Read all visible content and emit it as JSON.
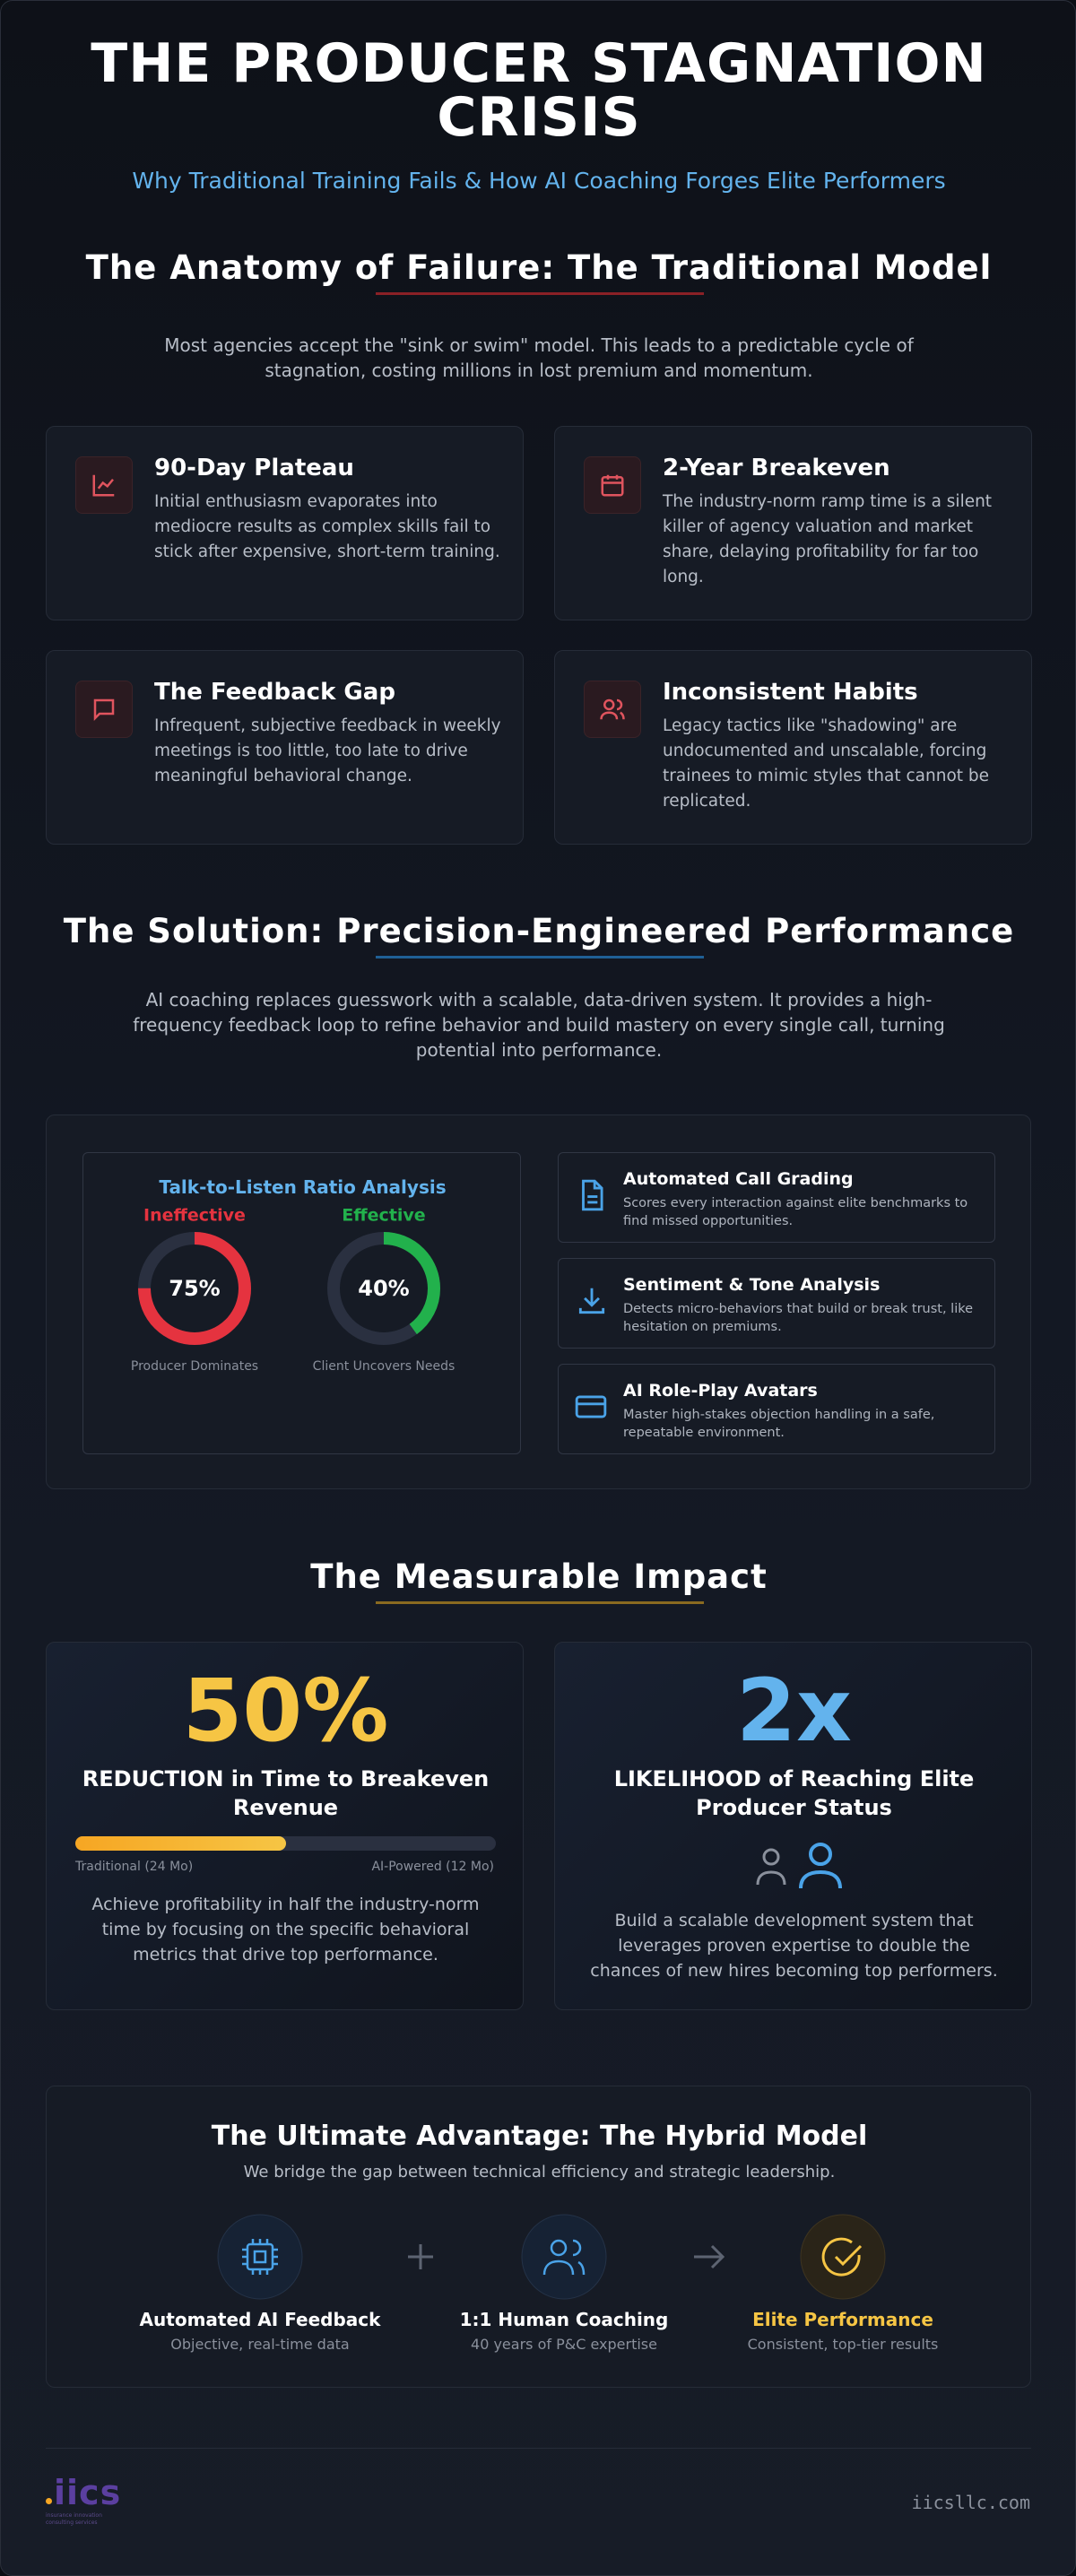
{
  "header": {
    "title": "THE PRODUCER STAGNATION CRISIS",
    "subtitle": "Why Traditional Training Fails & How AI Coaching Forges Elite Performers"
  },
  "failure": {
    "heading": "The Anatomy of Failure: The Traditional Model",
    "intro": "Most agencies accept the \"sink or swim\" model. This leads to a predictable cycle of stagnation, costing millions in lost premium and momentum.",
    "cards": [
      {
        "title": "90-Day Plateau",
        "body": "Initial enthusiasm evaporates into mediocre results as complex skills fail to stick after expensive, short-term training."
      },
      {
        "title": "2-Year Breakeven",
        "body": "The industry-norm ramp time is a silent killer of agency valuation and market share, delaying profitability for far too long."
      },
      {
        "title": "The Feedback Gap",
        "body": "Infrequent, subjective feedback in weekly meetings is too little, too late to drive meaningful behavioral change."
      },
      {
        "title": "Inconsistent Habits",
        "body": "Legacy tactics like \"shadowing\" are undocumented and unscalable, forcing trainees to mimic styles that cannot be replicated."
      }
    ]
  },
  "solution": {
    "heading": "The Solution: Precision-Engineered Performance",
    "intro": "AI coaching replaces guesswork with a scalable, data-driven system. It provides a high-frequency feedback loop to refine behavior and build mastery on every single call, turning potential into performance.",
    "analysis": {
      "title": "Talk-to-Listen Ratio Analysis",
      "gauges": [
        {
          "label": "Ineffective",
          "value": {
            "value": 75,
            "label": "75%"
          },
          "caption": "Producer Dominates",
          "color": "#e5333f"
        },
        {
          "label": "Effective",
          "value": {
            "value": 40,
            "label": "40%"
          },
          "caption": "Client Uncovers Needs",
          "color": "#22b14c"
        }
      ]
    },
    "features": [
      {
        "title": "Automated Call Grading",
        "body": "Scores every interaction against elite benchmarks to find missed opportunities."
      },
      {
        "title": "Sentiment & Tone Analysis",
        "body": "Detects micro-behaviors that build or break trust, like hesitation on premiums."
      },
      {
        "title": "AI Role-Play Avatars",
        "body": "Master high-stakes objection handling in a safe, repeatable environment."
      }
    ]
  },
  "impact": {
    "heading": "The Measurable Impact",
    "cards": [
      {
        "stat": {
          "value": 50,
          "label": "50%"
        },
        "title": "REDUCTION in Time to Breakeven Revenue",
        "bar_labels": [
          "Traditional (24 Mo)",
          "AI-Powered (12 Mo)"
        ],
        "body": "Achieve profitability in half the industry-norm time by focusing on the specific behavioral metrics that drive top performance."
      },
      {
        "stat": "2x",
        "title": "LIKELIHOOD of Reaching Elite Producer Status",
        "body": "Build a scalable development system that leverages proven expertise to double the chances of new hires becoming top performers."
      }
    ]
  },
  "hybrid": {
    "title": "The Ultimate Advantage: The Hybrid Model",
    "subtitle": "We bridge the gap between technical efficiency and strategic leadership.",
    "steps": [
      {
        "title": "Automated AI Feedback",
        "sub": "Objective, real-time data"
      },
      {
        "title": "1:1 Human Coaching",
        "sub": "40 years of P&C expertise"
      },
      {
        "title": "Elite Performance",
        "sub": "Consistent, top-tier results"
      }
    ]
  },
  "footer": {
    "logo": "iics",
    "logo_sub": "insurance innovation consulting services",
    "url": "iicsllc.com"
  }
}
